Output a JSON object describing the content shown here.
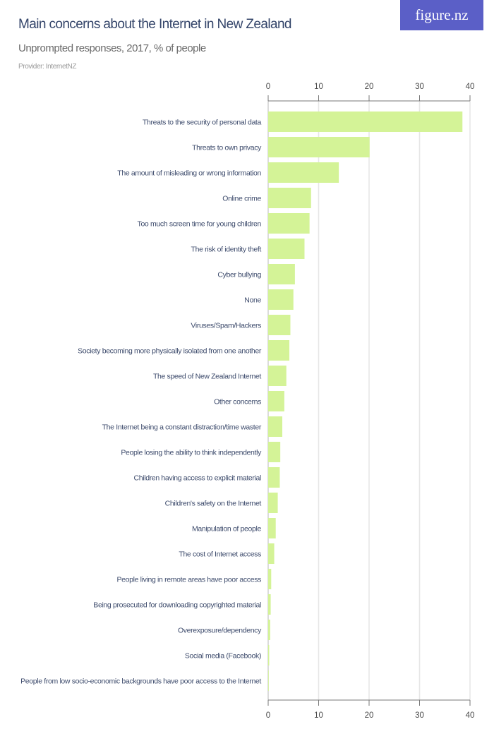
{
  "title": "Main concerns about the Internet in New Zealand",
  "subtitle": "Unprompted responses, 2017, % of people",
  "provider": "Provider: InternetNZ",
  "logo_text": "figure.nz",
  "colors": {
    "bar": "#d4f397",
    "logo_bg": "#5b5fc7",
    "title": "#34456a",
    "grid": "#e6e6e6"
  },
  "chart_data": {
    "type": "bar",
    "orientation": "horizontal",
    "title": "Main concerns about the Internet in New Zealand",
    "subtitle": "Unprompted responses, 2017, % of people",
    "xlim": [
      0,
      40
    ],
    "ticks": [
      0,
      10,
      20,
      30,
      40
    ],
    "tick_labels": [
      "0",
      "10",
      "20",
      "30",
      "40"
    ],
    "axis_position": "top and bottom",
    "grid": true,
    "categories": [
      "Threats to the security of personal data",
      "Threats to own privacy",
      "The amount of misleading or wrong information",
      "Online crime",
      "Too much screen time for young children",
      "The risk of identity theft",
      "Cyber bullying",
      "None",
      "Viruses/Spam/Hackers",
      "Society becoming more physically isolated from one another",
      "The speed of New Zealand Internet",
      "Other concerns",
      "The Internet being a constant distraction/time waster",
      "People losing the ability to think independently",
      "Children having access to explicit material",
      "Children's safety on the Internet",
      "Manipulation of people",
      "The cost of Internet access",
      "People living in remote areas have poor access",
      "Being prosecuted for downloading copyrighted material",
      "Overexposure/dependency",
      "Social media (Facebook)",
      "People from low socio-economic backgrounds have poor access to the Internet"
    ],
    "values": [
      38.5,
      20.1,
      14.0,
      8.5,
      8.2,
      7.2,
      5.3,
      5.0,
      4.4,
      4.2,
      3.6,
      3.2,
      2.8,
      2.4,
      2.3,
      1.9,
      1.5,
      1.2,
      0.6,
      0.5,
      0.4,
      0.2,
      0.1
    ]
  }
}
